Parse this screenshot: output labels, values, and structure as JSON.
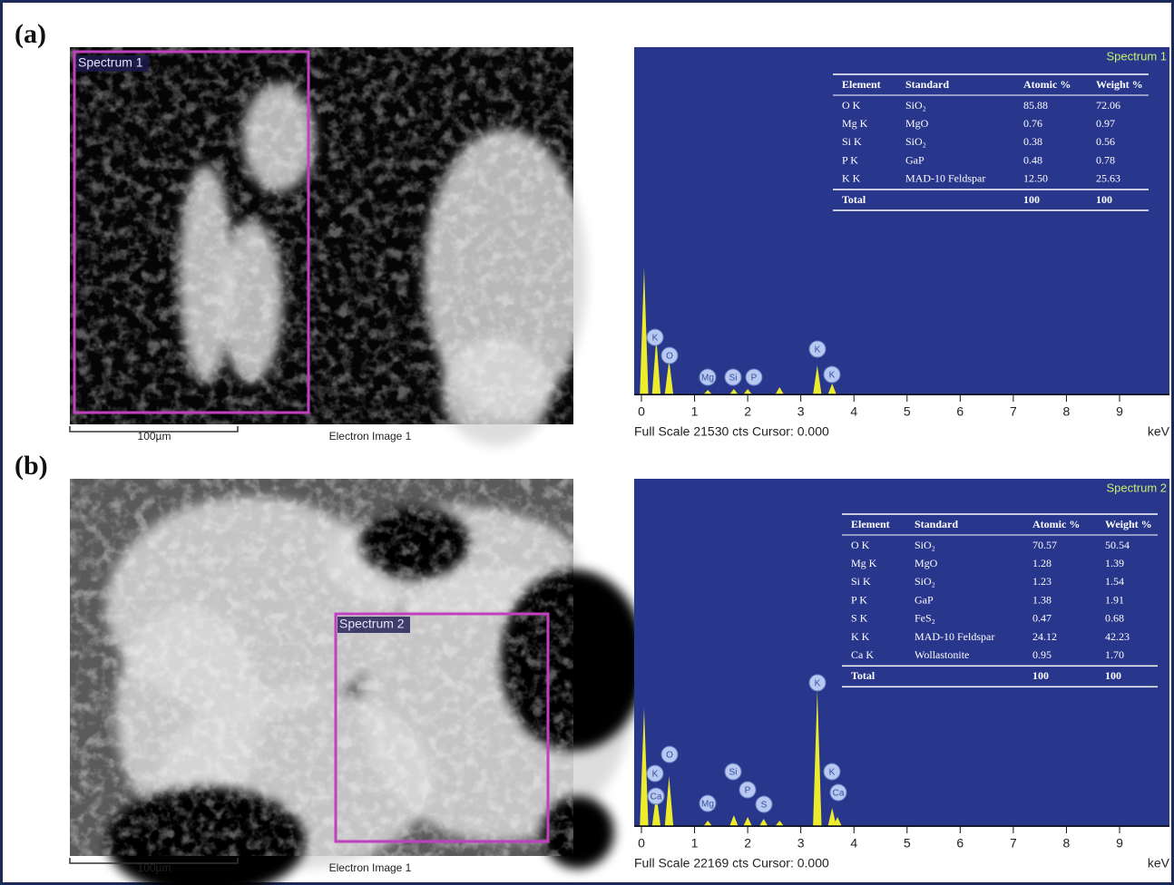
{
  "panels": [
    {
      "label": "(a)",
      "image": {
        "region_label": "Spectrum 1",
        "scale_bar": "100µm",
        "caption": "Electron Image 1"
      },
      "spectrum": {
        "title": "Spectrum 1",
        "table": {
          "header": [
            "Element",
            "Standard",
            "Atomic %",
            "Weight %"
          ],
          "rows": [
            [
              "O K",
              "SiO₂",
              "85.88",
              "72.06"
            ],
            [
              "Mg K",
              "MgO",
              "0.76",
              "0.97"
            ],
            [
              "Si K",
              "SiO₂",
              "0.38",
              "0.56"
            ],
            [
              "P K",
              "GaP",
              "0.48",
              "0.78"
            ],
            [
              "K K",
              "MAD-10 Feldspar",
              "12.50",
              "25.63"
            ]
          ],
          "total": {
            "label": "Total",
            "atomic": "100",
            "weight": "100"
          }
        },
        "peaks": [
          "K",
          "O",
          "Mg",
          "Si",
          "P",
          "K",
          "K"
        ],
        "xticks": [
          0,
          1,
          2,
          3,
          4,
          5,
          6,
          7,
          8,
          9
        ],
        "x_unit": "keV",
        "footer": "Full Scale 21530 cts Cursor: 0.000"
      }
    },
    {
      "label": "(b)",
      "image": {
        "region_label": "Spectrum 2",
        "scale_bar": "100µm",
        "caption": "Electron Image 1"
      },
      "spectrum": {
        "title": "Spectrum 2",
        "table": {
          "header": [
            "Element",
            "Standard",
            "Atomic %",
            "Weight %"
          ],
          "rows": [
            [
              "O K",
              "SiO₂",
              "70.57",
              "50.54"
            ],
            [
              "Mg K",
              "MgO",
              "1.28",
              "1.39"
            ],
            [
              "Si K",
              "SiO₂",
              "1.23",
              "1.54"
            ],
            [
              "P K",
              "GaP",
              "1.38",
              "1.91"
            ],
            [
              "S K",
              "FeS₂",
              "0.47",
              "0.68"
            ],
            [
              "K K",
              "MAD-10 Feldspar",
              "24.12",
              "42.23"
            ],
            [
              "Ca K",
              "Wollastonite",
              "0.95",
              "1.70"
            ]
          ],
          "total": {
            "label": "Total",
            "atomic": "100",
            "weight": "100"
          }
        },
        "peaks": [
          "O",
          "K",
          "Ca",
          "Mg",
          "Si",
          "P",
          "S",
          "K",
          "K",
          "Ca"
        ],
        "xticks": [
          0,
          1,
          2,
          3,
          4,
          5,
          6,
          7,
          8,
          9
        ],
        "x_unit": "keV",
        "footer": "Full Scale 22169 cts Cursor: 0.000"
      }
    }
  ]
}
